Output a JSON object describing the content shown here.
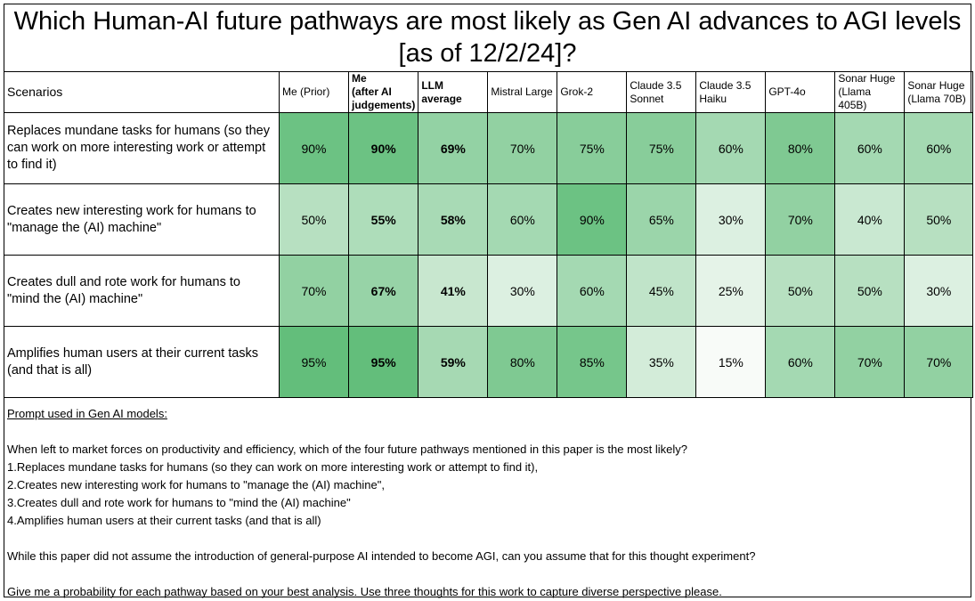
{
  "title_line1": "Which Human-AI future pathways are most likely as Gen AI advances to AGI levels",
  "title_line2": "[as of 12/2/24]?",
  "chart_data": {
    "type": "heatmap",
    "row_header": "Scenarios",
    "columns": [
      {
        "label_lines": [
          "Me (Prior)"
        ],
        "bold": false
      },
      {
        "label_lines": [
          "Me",
          "(after AI",
          "judgements)"
        ],
        "bold": true
      },
      {
        "label_lines": [
          "LLM average"
        ],
        "bold": true
      },
      {
        "label_lines": [
          "Mistral Large"
        ],
        "bold": false
      },
      {
        "label_lines": [
          "Grok-2"
        ],
        "bold": false
      },
      {
        "label_lines": [
          "Claude 3.5",
          "Sonnet"
        ],
        "bold": false
      },
      {
        "label_lines": [
          "Claude 3.5",
          "Haiku"
        ],
        "bold": false
      },
      {
        "label_lines": [
          "GPT-4o"
        ],
        "bold": false
      },
      {
        "label_lines": [
          "Sonar Huge",
          "(Llama 405B)"
        ],
        "bold": false
      },
      {
        "label_lines": [
          "Sonar Huge",
          "(Llama 70B)"
        ],
        "bold": false
      }
    ],
    "rows": [
      {
        "label": "Replaces mundane tasks for humans (so they can work on more interesting work or attempt to find it)",
        "values": [
          90,
          90,
          69,
          70,
          75,
          75,
          60,
          80,
          60,
          60
        ]
      },
      {
        "label": "Creates new interesting work for humans to \"manage the (AI) machine\"",
        "values": [
          50,
          55,
          58,
          60,
          90,
          65,
          30,
          70,
          40,
          50
        ]
      },
      {
        "label": "Creates dull and rote work for humans to \"mind the (AI) machine\"",
        "values": [
          70,
          67,
          41,
          30,
          60,
          45,
          25,
          50,
          50,
          30
        ]
      },
      {
        "label": "Amplifies human users at their current tasks (and that is all)",
        "values": [
          95,
          95,
          59,
          80,
          85,
          35,
          15,
          60,
          70,
          70
        ]
      }
    ],
    "value_suffix": "%",
    "color_low": "#f8fbf8",
    "color_high": "#63be7b"
  },
  "prompt": {
    "heading": "Prompt used in Gen AI models:",
    "question": "When left to market forces on productivity and efficiency, which of the four future pathways mentioned in this paper is the most likely?",
    "options": [
      "1.Replaces mundane tasks for humans (so they can work on more interesting work or attempt to find it),",
      "2.Creates new interesting work for humans to \"manage the (AI) machine\",",
      "3.Creates dull and rote work for humans to \"mind the (AI) machine\"",
      "4.Amplifies human users at their current tasks (and that is all)"
    ],
    "assumption": "While this paper did not assume the introduction of general-purpose AI intended to become AGI, can you assume that for this thought experiment?",
    "instruction": "Give me a probability for each pathway based on your best analysis. Use three thoughts for this work to capture diverse perspective please."
  }
}
